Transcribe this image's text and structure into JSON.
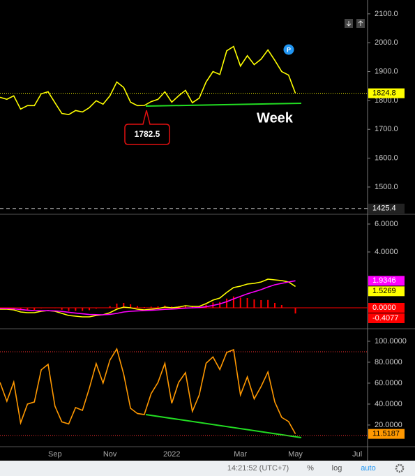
{
  "chart_data": [
    {
      "type": "line",
      "annotation": "Week",
      "ylim": [
        1408,
        2148
      ],
      "yticks": [
        {
          "value": 1500,
          "label": "1500.0"
        },
        {
          "value": 1600,
          "label": "1600.0"
        },
        {
          "value": 1700,
          "label": "1700.0"
        },
        {
          "value": 1800,
          "label": "1800.0"
        },
        {
          "value": 1900,
          "label": "1900.0"
        },
        {
          "value": 2000,
          "label": "2000.0"
        },
        {
          "value": 2100,
          "label": "2100.0"
        }
      ],
      "low_line": 1425.4,
      "series": [
        {
          "color": "#ffff00",
          "values": [
            1811,
            1804,
            1816,
            1770,
            1782,
            1782,
            1823,
            1830,
            1792,
            1755,
            1751,
            1765,
            1760,
            1775,
            1799,
            1787,
            1816,
            1864,
            1845,
            1794,
            1782,
            1782.5,
            1796,
            1804,
            1830,
            1794,
            1816,
            1835,
            1792,
            1808,
            1864,
            1900,
            1890,
            1972,
            1987,
            1919,
            1955,
            1924,
            1943,
            1975,
            1939,
            1900,
            1888,
            1824.8,
            null,
            null,
            null,
            null,
            null,
            null,
            null,
            null,
            null
          ]
        }
      ]
    },
    {
      "type": "macd",
      "ylim": [
        -1.45,
        6.65
      ],
      "yticks": [
        {
          "value": 4,
          "label": "4.0000"
        },
        {
          "value": 6,
          "label": "6.0000"
        }
      ],
      "zero_line": {
        "value": 0,
        "label": "0.0000",
        "color": "#ff0000"
      },
      "series": [
        {
          "color": "#ffff00",
          "values": [
            -0.1,
            -0.1,
            -0.15,
            -0.3,
            -0.35,
            -0.35,
            -0.25,
            -0.2,
            -0.25,
            -0.4,
            -0.55,
            -0.6,
            -0.65,
            -0.65,
            -0.55,
            -0.5,
            -0.35,
            -0.1,
            0.05,
            0.0,
            -0.1,
            -0.15,
            -0.1,
            -0.05,
            0.05,
            0.0,
            0.05,
            0.15,
            0.1,
            0.1,
            0.3,
            0.55,
            0.7,
            1.1,
            1.45,
            1.55,
            1.7,
            1.75,
            1.85,
            2.05,
            2.0,
            1.95,
            1.85,
            1.5269,
            null,
            null,
            null,
            null,
            null,
            null,
            null,
            null,
            null
          ]
        },
        {
          "color": "#ff00ff",
          "values": [
            -0.05,
            -0.06,
            -0.08,
            -0.12,
            -0.17,
            -0.2,
            -0.21,
            -0.21,
            -0.22,
            -0.26,
            -0.32,
            -0.38,
            -0.43,
            -0.48,
            -0.49,
            -0.5,
            -0.47,
            -0.4,
            -0.3,
            -0.25,
            -0.22,
            -0.2,
            -0.18,
            -0.15,
            -0.11,
            -0.09,
            -0.06,
            -0.02,
            0.0,
            0.02,
            0.08,
            0.17,
            0.28,
            0.44,
            0.64,
            0.82,
            1.0,
            1.15,
            1.3,
            1.49,
            1.65,
            1.75,
            1.85,
            1.9346,
            null,
            null,
            null,
            null,
            null,
            null,
            null,
            null,
            null
          ]
        }
      ],
      "histogram": {
        "color": "#ff0000",
        "values": [
          -0.05,
          -0.04,
          -0.07,
          -0.18,
          -0.18,
          -0.15,
          -0.04,
          0.01,
          -0.03,
          -0.14,
          -0.23,
          -0.22,
          -0.22,
          -0.17,
          -0.06,
          0.0,
          0.12,
          0.3,
          0.35,
          0.25,
          0.12,
          0.05,
          0.08,
          0.1,
          0.16,
          0.09,
          0.11,
          0.17,
          0.1,
          0.08,
          0.22,
          0.38,
          0.42,
          0.66,
          0.81,
          0.73,
          0.7,
          0.6,
          0.55,
          0.56,
          0.35,
          0.2,
          0.0,
          -0.4077,
          null,
          null,
          null,
          null,
          null,
          null,
          null,
          null,
          null
        ]
      }
    },
    {
      "type": "line",
      "ylim": [
        -0.7,
        111.3
      ],
      "yticks": [
        {
          "value": 20,
          "label": "20.0000"
        },
        {
          "value": 40,
          "label": "40.0000"
        },
        {
          "value": 60,
          "label": "60.0000"
        },
        {
          "value": 80,
          "label": "80.0000"
        },
        {
          "value": 100,
          "label": "100.0000"
        }
      ],
      "levels": [
        90,
        10
      ],
      "level_color": "#ff3030",
      "categories": [
        null,
        null,
        null,
        null,
        null,
        null,
        null,
        null,
        "Sep",
        null,
        null,
        null,
        null,
        null,
        null,
        null,
        "Nov",
        null,
        null,
        null,
        null,
        null,
        null,
        null,
        null,
        "2022",
        null,
        null,
        null,
        null,
        null,
        null,
        null,
        null,
        null,
        "Mar",
        null,
        null,
        null,
        null,
        null,
        null,
        null,
        "May",
        null,
        null,
        null,
        null,
        null,
        null,
        null,
        null,
        "Jul"
      ],
      "series": [
        {
          "color": "#ff9800",
          "values": [
            60.7,
            42.7,
            61,
            22,
            40,
            42,
            72.7,
            78,
            38,
            23,
            21,
            36.7,
            34,
            55,
            78.7,
            60,
            82,
            92.7,
            68.7,
            36,
            31,
            30,
            50,
            60.7,
            79,
            40.7,
            60.7,
            70,
            33,
            48.7,
            79,
            85,
            73,
            89.3,
            92,
            48.7,
            66,
            45,
            56.7,
            70.7,
            42,
            27.3,
            23.3,
            11.5187,
            null,
            null,
            null,
            null,
            null,
            null,
            null,
            null,
            null
          ]
        }
      ]
    }
  ],
  "status_bar": {
    "time": "14:21:52 (UTC+7)",
    "buttons": [
      "%",
      "log",
      "auto"
    ]
  }
}
